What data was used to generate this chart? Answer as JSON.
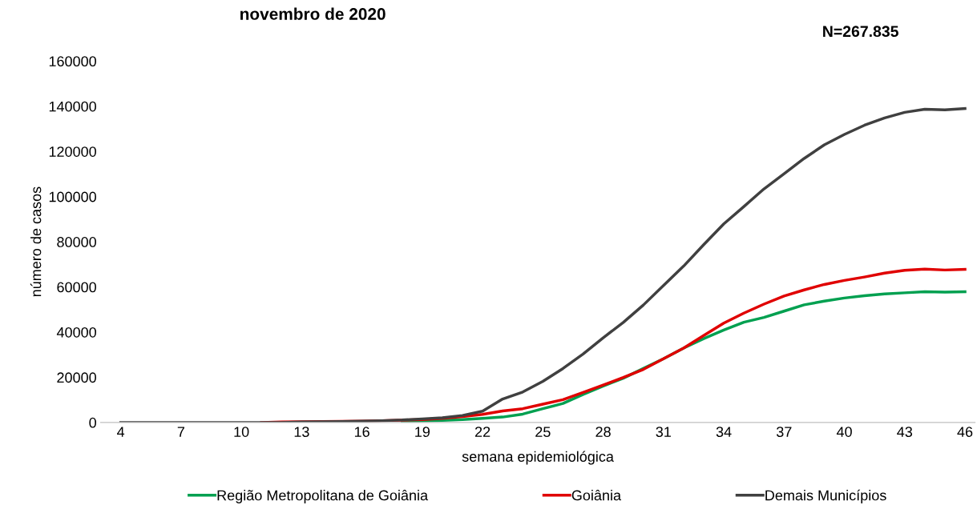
{
  "chart_data": {
    "type": "line",
    "title": "novembro de 2020",
    "annotations": [
      "N=267.835"
    ],
    "xlabel": "semana epidemiológica",
    "ylabel": "número de casos",
    "x": [
      4,
      5,
      6,
      7,
      8,
      9,
      10,
      11,
      12,
      13,
      14,
      15,
      16,
      17,
      18,
      19,
      20,
      21,
      22,
      23,
      24,
      25,
      26,
      27,
      28,
      29,
      30,
      31,
      32,
      33,
      34,
      35,
      36,
      37,
      38,
      39,
      40,
      41,
      42,
      43,
      44,
      45,
      46
    ],
    "xlim": [
      3,
      46.5
    ],
    "xticks": [
      4,
      7,
      10,
      13,
      16,
      19,
      22,
      25,
      28,
      31,
      34,
      37,
      40,
      43,
      46
    ],
    "ylim": [
      0,
      160000
    ],
    "yticks": [
      0,
      20000,
      40000,
      60000,
      80000,
      100000,
      120000,
      140000,
      160000
    ],
    "grid": false,
    "legend": "bottom",
    "marker": "none",
    "line_style": "solid",
    "series": [
      {
        "name": "Região Metropolitana de Goiânia",
        "color": "#00a050",
        "values": [
          null,
          null,
          null,
          null,
          null,
          null,
          null,
          null,
          null,
          null,
          null,
          null,
          null,
          null,
          500,
          700,
          900,
          1300,
          1800,
          2400,
          3700,
          6100,
          8400,
          12400,
          16100,
          19600,
          23900,
          28200,
          32900,
          37100,
          40900,
          44400,
          46500,
          49300,
          52100,
          53700,
          55100,
          56100,
          56900,
          57400,
          57900,
          57700,
          57900
        ]
      },
      {
        "name": "Goiânia",
        "color": "#e00000",
        "values": [
          null,
          null,
          null,
          null,
          null,
          null,
          null,
          0,
          200,
          300,
          400,
          500,
          600,
          800,
          1000,
          1300,
          1800,
          2600,
          3600,
          5100,
          6100,
          8100,
          10100,
          13300,
          16600,
          19900,
          23500,
          28200,
          32900,
          38500,
          44000,
          48400,
          52400,
          56000,
          58700,
          61100,
          62900,
          64400,
          66100,
          67400,
          67900,
          67500,
          67800
        ]
      },
      {
        "name": "Demais Municípios",
        "color": "#404040",
        "values": [
          0,
          0,
          0,
          0,
          0,
          0,
          0,
          0,
          0,
          200,
          300,
          400,
          600,
          800,
          1100,
          1600,
          2100,
          3100,
          5000,
          10400,
          13500,
          18200,
          23900,
          30300,
          37500,
          44300,
          52000,
          60600,
          69200,
          78700,
          87900,
          95600,
          103400,
          110100,
          116900,
          122900,
          127500,
          131600,
          134800,
          137300,
          138700,
          138400,
          139000
        ]
      }
    ]
  }
}
